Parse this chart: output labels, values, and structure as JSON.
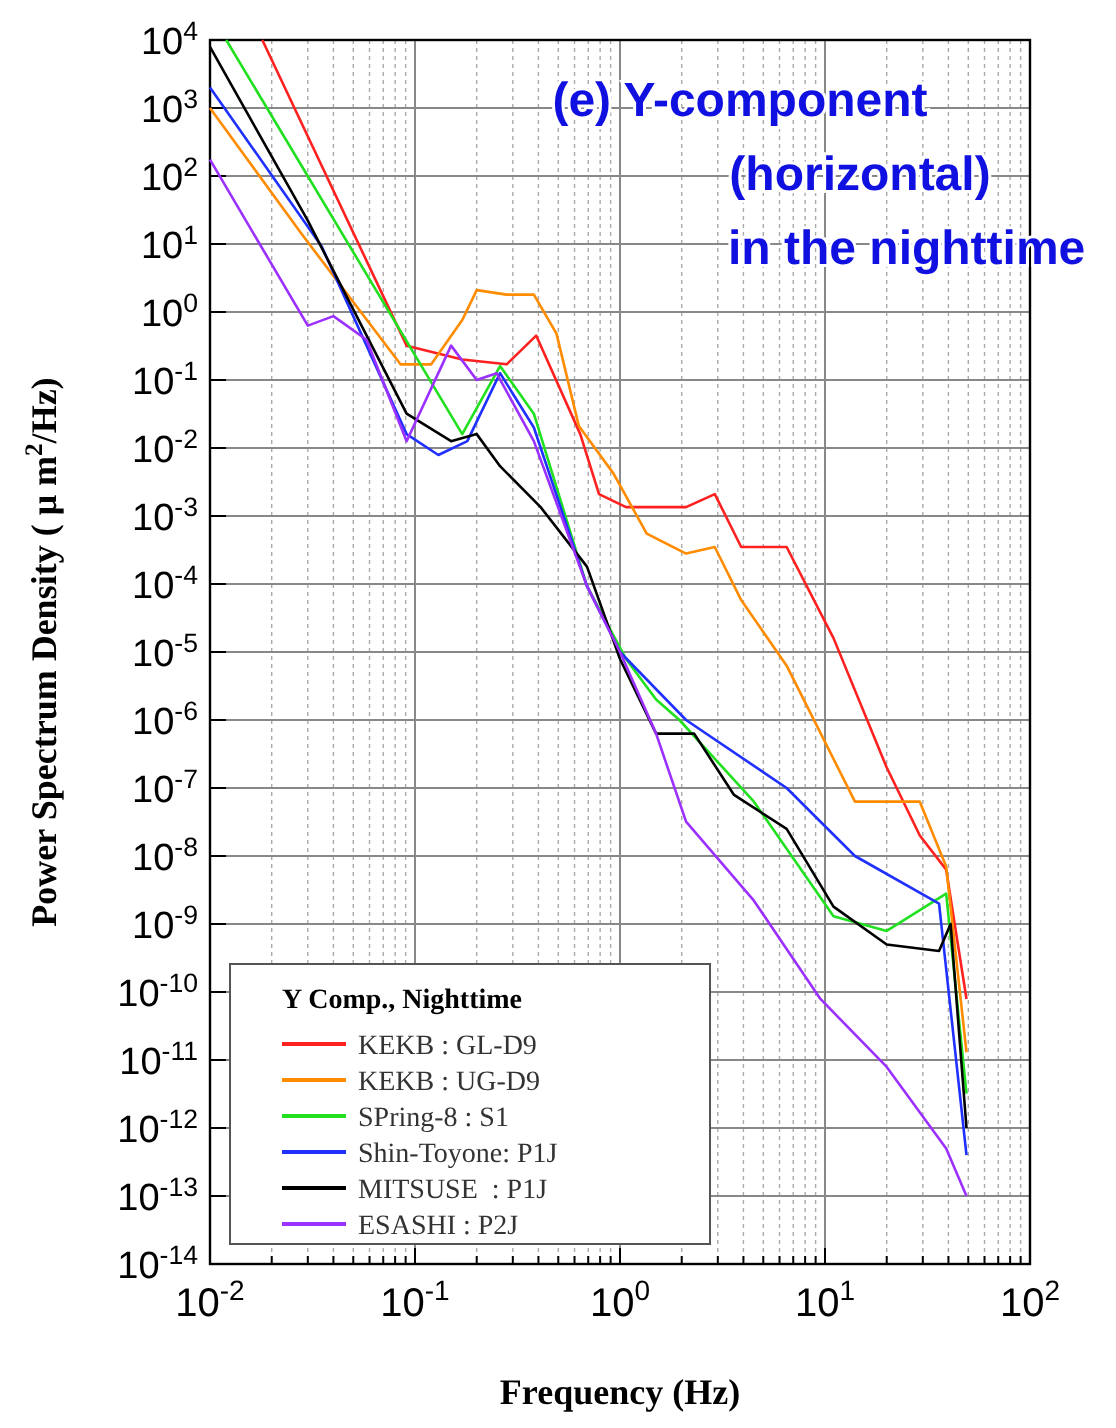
{
  "chart_data": {
    "type": "line",
    "title": "(e) Y-component\n(horizontal)\n in the nighttime",
    "xlabel": "Frequency (Hz)",
    "ylabel": "Power Spectrum Density ( μ m$^{2}$/Hz)",
    "legend_title": "Y Comp., Nighttime",
    "log": "xy",
    "grid": true,
    "legend": "bottom left",
    "line_style": "solid",
    "marker": "none",
    "xlim": [
      0.01,
      100
    ],
    "ylim": [
      1e-14,
      10000
    ],
    "xticks": [
      {
        "value": 0.01,
        "label": "10$^{-2}$"
      },
      {
        "value": 0.02,
        "label": null
      },
      {
        "value": 0.03,
        "label": null
      },
      {
        "value": 0.04,
        "label": null
      },
      {
        "value": 0.05,
        "label": null
      },
      {
        "value": 0.06,
        "label": null
      },
      {
        "value": 0.07,
        "label": null
      },
      {
        "value": 0.08,
        "label": null
      },
      {
        "value": 0.09,
        "label": null
      },
      {
        "value": 0.1,
        "label": "10$^{-1}$"
      },
      {
        "value": 0.2,
        "label": null
      },
      {
        "value": 0.3,
        "label": null
      },
      {
        "value": 0.4,
        "label": null
      },
      {
        "value": 0.5,
        "label": null
      },
      {
        "value": 0.6,
        "label": null
      },
      {
        "value": 0.7,
        "label": null
      },
      {
        "value": 0.8,
        "label": null
      },
      {
        "value": 0.9,
        "label": null
      },
      {
        "value": 1,
        "label": "10$^{0}$"
      },
      {
        "value": 2,
        "label": null
      },
      {
        "value": 3,
        "label": null
      },
      {
        "value": 4,
        "label": null
      },
      {
        "value": 5,
        "label": null
      },
      {
        "value": 6,
        "label": null
      },
      {
        "value": 7,
        "label": null
      },
      {
        "value": 8,
        "label": null
      },
      {
        "value": 9,
        "label": null
      },
      {
        "value": 10,
        "label": "10$^{1}$"
      },
      {
        "value": 20,
        "label": null
      },
      {
        "value": 30,
        "label": null
      },
      {
        "value": 40,
        "label": null
      },
      {
        "value": 50,
        "label": null
      },
      {
        "value": 60,
        "label": null
      },
      {
        "value": 70,
        "label": null
      },
      {
        "value": 80,
        "label": null
      },
      {
        "value": 90,
        "label": null
      },
      {
        "value": 100,
        "label": "10$^{2}$"
      }
    ],
    "yticks": [
      {
        "value": 1e-14,
        "label": "10$^{-14}$"
      },
      {
        "value": 1e-13,
        "label": "10$^{-13}$"
      },
      {
        "value": 1e-12,
        "label": "10$^{-12}$"
      },
      {
        "value": 1e-11,
        "label": "10$^{-11}$"
      },
      {
        "value": 1e-10,
        "label": "10$^{-10}$"
      },
      {
        "value": 1e-09,
        "label": "10$^{-9}$"
      },
      {
        "value": 1e-08,
        "label": "10$^{-8}$"
      },
      {
        "value": 1e-07,
        "label": "10$^{-7}$"
      },
      {
        "value": 1e-06,
        "label": "10$^{-6}$"
      },
      {
        "value": 1e-05,
        "label": "10$^{-5}$"
      },
      {
        "value": 0.0001,
        "label": "10$^{-4}$"
      },
      {
        "value": 0.001,
        "label": "10$^{-3}$"
      },
      {
        "value": 0.01,
        "label": "10$^{-2}$"
      },
      {
        "value": 0.1,
        "label": "10$^{-1}$"
      },
      {
        "value": 1,
        "label": "10$^{0}$"
      },
      {
        "value": 10,
        "label": "10$^{1}$"
      },
      {
        "value": 100,
        "label": "10$^{2}$"
      },
      {
        "value": 1000,
        "label": "10$^{3}$"
      },
      {
        "value": 10000,
        "label": "10$^{4}$"
      }
    ],
    "series": [
      {
        "name": "KEKB : GL-D9",
        "color": "#ff2020",
        "x": [
          0.018,
          0.091,
          0.17,
          0.28,
          0.39,
          0.64,
          0.79,
          1.07,
          2.1,
          2.9,
          3.9,
          6.5,
          11,
          20,
          29,
          39,
          49
        ],
        "values": [
          10000,
          0.32,
          0.2,
          0.17,
          0.45,
          0.016,
          0.0021,
          0.00135,
          0.00135,
          0.0021,
          0.00035,
          0.00035,
          1.6e-05,
          2e-07,
          2e-08,
          6.3e-09,
          7.9e-11
        ]
      },
      {
        "name": "KEKB : UG-D9",
        "color": "#ff8c00",
        "x": [
          0.01,
          0.028,
          0.085,
          0.12,
          0.17,
          0.2,
          0.28,
          0.38,
          0.49,
          0.63,
          0.93,
          1.35,
          2.1,
          2.9,
          3.9,
          6.5,
          14,
          29,
          39,
          49
        ],
        "values": [
          1000,
          14,
          0.17,
          0.17,
          0.76,
          2.1,
          1.8,
          1.8,
          0.48,
          0.021,
          0.0042,
          0.00055,
          0.00028,
          0.00035,
          5.8e-05,
          6.3e-06,
          6.3e-08,
          6.3e-08,
          7e-09,
          1.3e-11
        ]
      },
      {
        "name": "SPring-8 : S1",
        "color": "#20e020",
        "x": [
          0.012,
          0.17,
          0.26,
          0.38,
          0.69,
          1.07,
          1.5,
          1.95,
          4.5,
          11,
          20,
          39,
          49
        ],
        "values": [
          10000,
          0.016,
          0.16,
          0.032,
          9.3e-05,
          7.9e-06,
          2e-06,
          1e-06,
          6.3e-08,
          1.3e-09,
          7.9e-10,
          2.8e-09,
          3.2e-12
        ]
      },
      {
        "name": "Shin-Toyone: P1J",
        "color": "#2030ff",
        "x": [
          0.01,
          0.035,
          0.091,
          0.13,
          0.18,
          0.26,
          0.38,
          0.69,
          1,
          2.1,
          6.5,
          14,
          36,
          49
        ],
        "values": [
          2000,
          9.3,
          0.016,
          0.0079,
          0.0126,
          0.126,
          0.02,
          9.3e-05,
          1e-05,
          1e-06,
          1e-07,
          1e-08,
          2e-09,
          4e-13
        ]
      },
      {
        "name": "MITSUSE  : P1J",
        "color": "#000000",
        "x": [
          0.01,
          0.03,
          0.091,
          0.15,
          0.2,
          0.26,
          0.41,
          0.69,
          1,
          1.5,
          2.3,
          3.6,
          6.5,
          11,
          20,
          36,
          41,
          49
        ],
        "values": [
          7900,
          22,
          0.032,
          0.0126,
          0.016,
          0.0054,
          0.00135,
          0.00018,
          7.9e-06,
          6.3e-07,
          6.3e-07,
          7.9e-08,
          2.5e-08,
          1.8e-09,
          5e-10,
          4e-10,
          1e-09,
          1e-12
        ]
      },
      {
        "name": "ESASHI : P2J",
        "color": "#9b30ff",
        "x": [
          0.01,
          0.03,
          0.04,
          0.058,
          0.091,
          0.15,
          0.2,
          0.25,
          0.38,
          0.69,
          1,
          1.5,
          2.1,
          4.5,
          9.5,
          20,
          39,
          49
        ],
        "values": [
          174,
          0.63,
          0.87,
          0.39,
          0.0126,
          0.32,
          0.1,
          0.126,
          0.0126,
          9.3e-05,
          1e-05,
          6.3e-07,
          3.2e-08,
          2.2e-09,
          7.9e-11,
          7.9e-12,
          5e-13,
          1e-13
        ]
      }
    ]
  }
}
